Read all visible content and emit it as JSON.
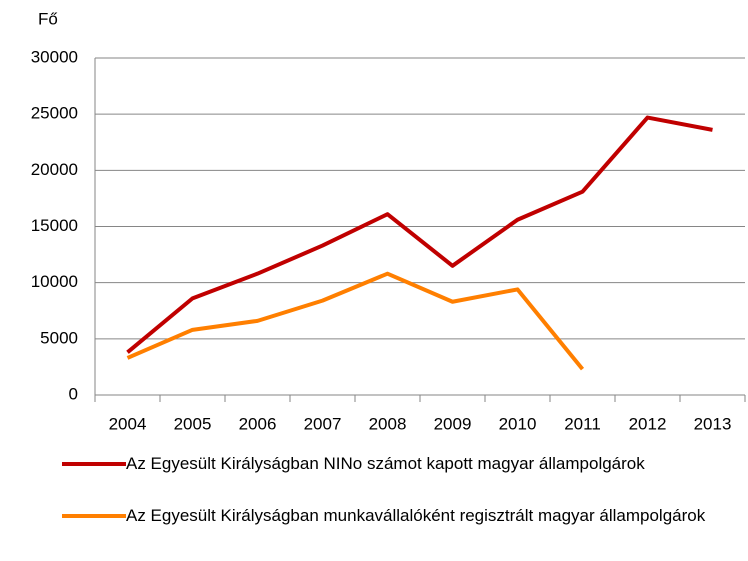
{
  "chart_data": {
    "type": "line",
    "ylabel": "Fő",
    "categories": [
      "2004",
      "2005",
      "2006",
      "2007",
      "2008",
      "2009",
      "2010",
      "2011",
      "2012",
      "2013"
    ],
    "series": [
      {
        "name": "Az Egyesült Királyságban NINo számot kapott magyar állampolgárok",
        "color": "#c00000",
        "values": [
          3800,
          8600,
          10800,
          13300,
          16100,
          11500,
          15600,
          18100,
          24700,
          23600
        ]
      },
      {
        "name": "Az Egyesült Királyságban munkavállalóként regisztrált magyar állampolgárok",
        "color": "#ff7f00",
        "values": [
          3300,
          5800,
          6600,
          8400,
          10800,
          8300,
          9400,
          2300,
          null,
          null
        ]
      }
    ],
    "ylim": [
      0,
      30000
    ],
    "yticks": [
      0,
      5000,
      10000,
      15000,
      20000,
      25000,
      30000
    ],
    "grid": true,
    "legend": "bottom"
  }
}
